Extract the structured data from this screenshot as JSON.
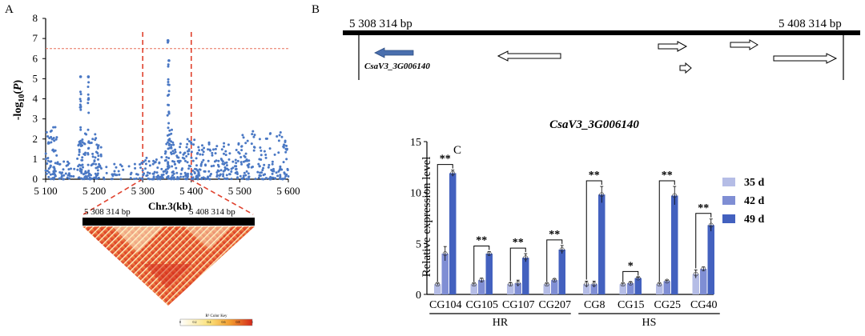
{
  "panels": {
    "a": "A",
    "b": "B",
    "c": "C"
  },
  "colors": {
    "scatter_point": "#4a78c4",
    "threshold_line": "#e8705a",
    "region_dash": "#e0422e",
    "bar_35d": "#b5bde6",
    "bar_42d": "#7f8ed4",
    "bar_49d": "#4361bf",
    "query_gene_arrow": "#4a6fae",
    "ld_light": "#fff6d0",
    "ld_mid": "#f4a534",
    "ld_dark": "#d3281a"
  },
  "chart_data": [
    {
      "type": "scatter",
      "xlabel": "Chr.3(kb)",
      "ylabel": "-log10(P)",
      "xlim": [
        5100,
        5600
      ],
      "ylim": [
        0,
        8
      ],
      "x_ticks": [
        "5 100",
        "5 200",
        "5 300",
        "5 400",
        "5 500",
        "5 600"
      ],
      "y_ticks": [
        "0",
        "1",
        "2",
        "3",
        "4",
        "5",
        "6",
        "7",
        "8"
      ],
      "threshold": 6.5,
      "region": [
        5300,
        5400
      ],
      "peaks": [
        {
          "x": 5172,
          "y": 5.1
        },
        {
          "x": 5188,
          "y": 5.1
        },
        {
          "x": 5352,
          "y": 6.9
        },
        {
          "x": 5354,
          "y": 5.9
        }
      ]
    },
    {
      "type": "heatmap",
      "top_left_label": "5 308 314 bp",
      "top_right_label": "5 408 314 bp",
      "legend_label": "R² Color Key",
      "legend_ticks": [
        "0",
        "0.2",
        "0.4",
        "0.6",
        "0.8",
        "1"
      ]
    },
    {
      "type": "bar",
      "title": "CsaV3_3G006140",
      "ylabel": "Relative expression level",
      "ylim": [
        0,
        15
      ],
      "y_ticks": [
        "0",
        "5",
        "10",
        "15"
      ],
      "categories": [
        "CG104",
        "CG105",
        "CG107",
        "CG207",
        "CG8",
        "CG15",
        "CG25",
        "CG40"
      ],
      "groups": [
        {
          "label": "HR",
          "members": [
            "CG104",
            "CG105",
            "CG107",
            "CG207"
          ]
        },
        {
          "label": "HS",
          "members": [
            "CG8",
            "CG15",
            "CG25",
            "CG40"
          ]
        }
      ],
      "series": [
        {
          "name": "35 d",
          "values": [
            1.0,
            1.0,
            1.0,
            1.0,
            1.0,
            1.0,
            1.0,
            2.0
          ],
          "errors": [
            0.1,
            0.1,
            0.15,
            0.1,
            0.3,
            0.1,
            0.1,
            0.4
          ]
        },
        {
          "name": "42 d",
          "values": [
            4.0,
            1.4,
            1.1,
            1.4,
            1.0,
            1.1,
            1.3,
            2.5
          ],
          "errors": [
            0.7,
            0.2,
            0.3,
            0.1,
            0.3,
            0.1,
            0.1,
            0.2
          ]
        },
        {
          "name": "49 d",
          "values": [
            11.9,
            4.0,
            3.6,
            4.4,
            9.8,
            1.6,
            9.7,
            6.8
          ],
          "errors": [
            0.3,
            0.2,
            0.4,
            0.4,
            0.8,
            0.1,
            0.9,
            0.6
          ]
        }
      ],
      "significance": [
        "**",
        "**",
        "**",
        "**",
        "**",
        "*",
        "**",
        "**"
      ]
    }
  ],
  "gene_map": {
    "start_label": "5 308 314 bp",
    "end_label": "5 408 314 bp",
    "query_gene": "CsaV3_3G006140"
  }
}
